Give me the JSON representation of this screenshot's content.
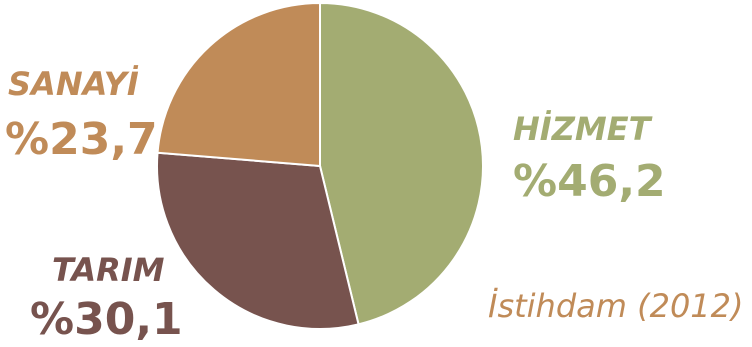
{
  "chart_data": {
    "type": "pie",
    "title": "",
    "caption": "İstihdam (2012)",
    "slices": [
      {
        "name": "HİZMET",
        "label": "%46,2",
        "value": 46.2,
        "color": "#a3ac72"
      },
      {
        "name": "TARIM",
        "label": "%30,1",
        "value": 30.1,
        "color": "#77534e"
      },
      {
        "name": "SANAYİ",
        "label": "%23,7",
        "value": 23.7,
        "color": "#c08b58"
      }
    ]
  }
}
